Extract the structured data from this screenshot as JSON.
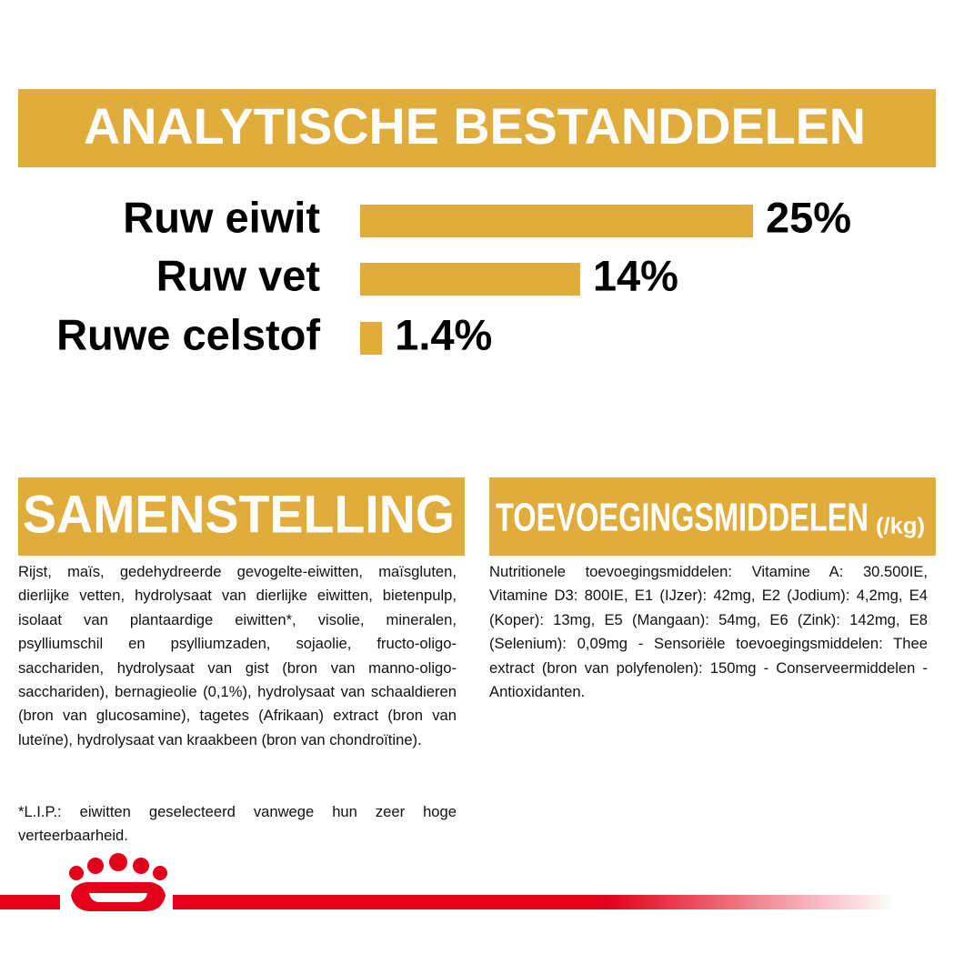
{
  "chart_data": {
    "type": "bar",
    "orientation": "horizontal",
    "title": "ANALYTISCHE BESTANDDELEN",
    "categories": [
      "Ruw eiwit",
      "Ruw vet",
      "Ruwe celstof"
    ],
    "values": [
      25,
      14,
      1.4
    ],
    "value_labels": [
      "25%",
      "14%",
      "1.4%"
    ],
    "color": "#e0ac3c"
  },
  "composition": {
    "title": "SAMENSTELLING",
    "text": "Rijst, maïs, gedehydreerde gevogelte-eiwitten, maïsgluten, dierlijke vetten, hydrolysaat van dierlijke eiwitten, bietenpulp, isolaat van plantaardige eiwitten*, visolie, mineralen, psylliumschil en psylliumzaden, sojaolie, fructo-oligo-sacchariden, hydrolysaat van gist (bron van manno-oligo-sacchariden), bernagieolie (0,1%), hydrolysaat van schaaldieren (bron van glucosamine), tagetes (Afrikaan) extract (bron van luteïne), hydrolysaat van kraakbeen (bron van chondroïtine).",
    "footnote": "*L.I.P.: eiwitten geselecteerd vanwege hun zeer hoge verteerbaarheid."
  },
  "additives": {
    "title": "TOEVOEGINGSMIDDELEN",
    "unit": "(/kg)",
    "text": "Nutritionele toevoegingsmiddelen: Vitamine A: 30.500IE, Vitamine D3: 800IE, E1 (IJzer): 42mg, E2 (Jodium): 4,2mg, E4 (Koper): 13mg, E5 (Mangaan): 54mg, E6 (Zink): 142mg, E8 (Selenium): 0,09mg - Sensoriële toevoegingsmiddelen: Thee extract (bron van polyfenolen): 150mg - Conserveermiddelen - Antioxidanten."
  }
}
